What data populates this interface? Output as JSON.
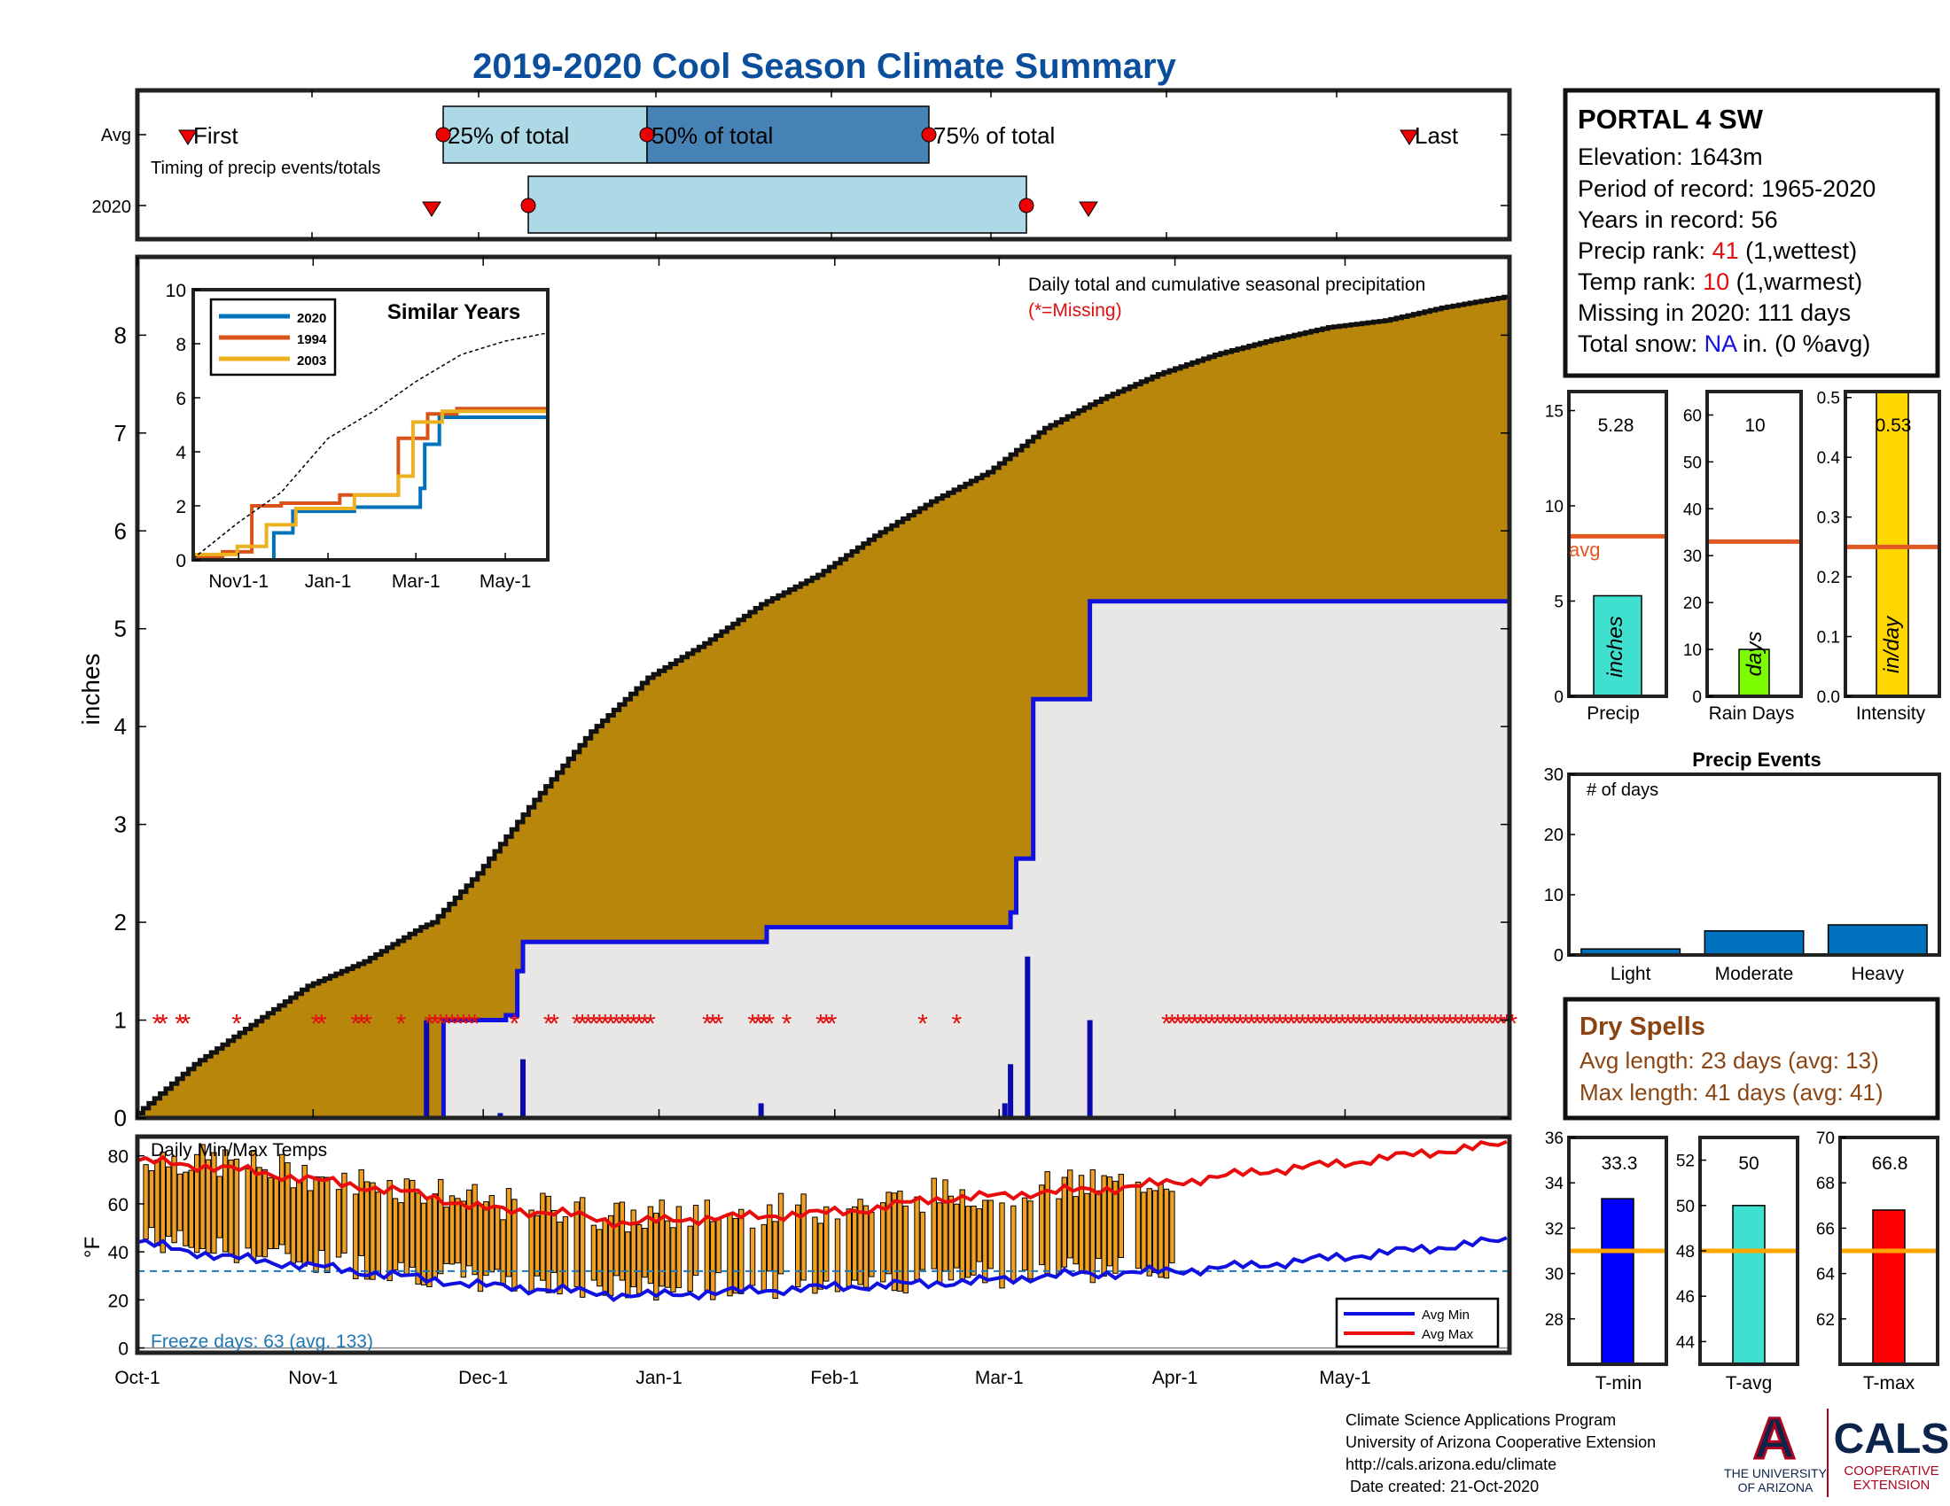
{
  "title": "2019-2020 Cool Season Climate Summary",
  "timing": {
    "row_avg": "Avg",
    "row_year": "2020",
    "caption": "Timing of precip events/totals",
    "first": "First",
    "last": "Last",
    "p25": "25% of total",
    "p50": "50% of total",
    "p75": "75% of total"
  },
  "station": {
    "name": "PORTAL 4 SW",
    "elevation": "Elevation: 1643m",
    "period": "Period of record: 1965-2020",
    "years": "Years in record: 56",
    "precip_rank_label": "Precip rank:",
    "precip_rank_value": "41",
    "precip_rank_note": "(1,wettest)",
    "temp_rank_label": "Temp rank:",
    "temp_rank_value": "10",
    "temp_rank_note": "(1,warmest)",
    "missing": "Missing in 2020: 111 days",
    "snow_label": "Total snow:",
    "snow_value": "NA",
    "snow_note": "in. (0 %avg)"
  },
  "main_plot": {
    "note": "Daily total and cumulative seasonal precipitation",
    "missing_note": "(*=Missing)",
    "ylabel": "inches"
  },
  "inset": {
    "title": "Similar Years",
    "legend": [
      "2020",
      "1994",
      "2003"
    ]
  },
  "mini_bars": {
    "precip": {
      "label": "Precip",
      "value_text": "5.28",
      "unit": "inches",
      "avg_label": "avg"
    },
    "rain_days": {
      "label": "Rain Days",
      "value_text": "10",
      "unit": "days"
    },
    "intensity": {
      "label": "Intensity",
      "value_text": "0.53",
      "unit": "in/day"
    }
  },
  "events": {
    "title": "Precip Events",
    "ylabel": "# of days"
  },
  "dry_spells": {
    "title": "Dry Spells",
    "avg": "Avg length: 23 days (avg: 13)",
    "max": "Max length: 41 days (avg: 41)"
  },
  "temps": {
    "title": "Daily Min/Max Temps",
    "ylabel": "°F",
    "freeze": "Freeze days: 63 (avg. 133)",
    "legend_min": "Avg Min",
    "legend_max": "Avg Max"
  },
  "temp_bars": {
    "tmin": {
      "label": "T-min",
      "value_text": "33.3"
    },
    "tavg": {
      "label": "T-avg",
      "value_text": "50"
    },
    "tmax": {
      "label": "T-max",
      "value_text": "66.8"
    }
  },
  "footer": {
    "line1": "Climate Science Applications Program",
    "line2": "University of Arizona Cooperative Extension",
    "line3": "http://cals.arizona.edu/climate",
    "line4": " Date created: 21-Oct-2020"
  },
  "logos": {
    "ua_letter": "A",
    "ua_line1": "THE UNIVERSITY",
    "ua_line2": "OF ARIZONA",
    "cals": "CALS",
    "cals_line1": "COOPERATIVE",
    "cals_line2": "EXTENSION"
  },
  "colors": {
    "title_blue": "#0b4f9c",
    "cumulative_fill": "#b8860b",
    "obs_fill": "#e8e7e5",
    "obs_line": "#1010e0",
    "rank_red": "#e01010",
    "dry_brown": "#8b4513",
    "light_blue": "#add8e6",
    "steel_blue": "#4682b4",
    "avg_line": "#e25822",
    "temp_avg_line": "#ffa500"
  },
  "chart_data": [
    {
      "id": "cumulative_precip",
      "type": "area",
      "title": "Daily total and cumulative seasonal precipitation",
      "ylabel": "inches",
      "ylim": [
        0,
        8.8
      ],
      "y_ticks": [
        0,
        1,
        2,
        3,
        4,
        5,
        6,
        7,
        8
      ],
      "x_ticks": [
        "Oct-1",
        "Nov-1",
        "Dec-1",
        "Jan-1",
        "Feb-1",
        "Mar-1",
        "Apr-1",
        "May-1"
      ],
      "x_tick_days": [
        0,
        31,
        61,
        92,
        123,
        152,
        183,
        213
      ],
      "xlim_days": [
        0,
        242
      ],
      "series": [
        {
          "name": "Average cumulative",
          "x_days": [
            0,
            10,
            20,
            30,
            40,
            50,
            52,
            60,
            70,
            80,
            90,
            100,
            110,
            120,
            130,
            140,
            150,
            160,
            170,
            180,
            190,
            200,
            210,
            220,
            230,
            242
          ],
          "y": [
            0.05,
            0.55,
            0.95,
            1.35,
            1.6,
            1.95,
            2.0,
            2.5,
            3.25,
            3.95,
            4.5,
            4.85,
            5.25,
            5.55,
            5.95,
            6.3,
            6.6,
            7.05,
            7.35,
            7.6,
            7.8,
            7.95,
            8.08,
            8.15,
            8.28,
            8.4
          ]
        },
        {
          "name": "2020 cumulative",
          "x_days": [
            0,
            51,
            54,
            57,
            60,
            65,
            67,
            68,
            110,
            111,
            153,
            154,
            155,
            156,
            157,
            158,
            167,
            168,
            242
          ],
          "y": [
            0,
            0,
            1.0,
            1.0,
            1.0,
            1.05,
            1.5,
            1.8,
            1.8,
            1.95,
            1.95,
            2.1,
            2.65,
            2.65,
            2.65,
            4.28,
            4.28,
            5.28,
            5.28
          ]
        },
        {
          "name": "Daily precip",
          "x_days": [
            51,
            64,
            68,
            110,
            153,
            154,
            157,
            168
          ],
          "y": [
            1.0,
            0.05,
            0.6,
            0.15,
            0.15,
            0.55,
            1.65,
            1.0
          ]
        }
      ],
      "missing_day_ranges": [
        [
          3,
          4
        ],
        [
          7,
          8
        ],
        [
          17,
          17
        ],
        [
          31,
          32
        ],
        [
          38,
          40
        ],
        [
          46,
          46
        ],
        [
          51,
          59
        ],
        [
          66,
          66
        ],
        [
          72,
          73
        ],
        [
          77,
          90
        ],
        [
          100,
          102
        ],
        [
          108,
          111
        ],
        [
          114,
          114
        ],
        [
          120,
          122
        ],
        [
          138,
          138
        ],
        [
          144,
          144
        ],
        [
          181,
          242
        ]
      ]
    },
    {
      "id": "similar_years",
      "type": "line",
      "title": "Similar Years",
      "ylim": [
        0,
        10
      ],
      "y_ticks": [
        0,
        2,
        4,
        6,
        8,
        10
      ],
      "x_ticks": [
        "Nov1-1",
        "Jan-1",
        "Mar-1",
        "May-1"
      ],
      "series": [
        {
          "name": "2020",
          "x_days": [
            0,
            51,
            55,
            68,
            110,
            155,
            158,
            168,
            242
          ],
          "y": [
            0,
            0,
            1.0,
            1.8,
            1.95,
            2.65,
            4.28,
            5.28,
            5.28
          ]
        },
        {
          "name": "1994",
          "x_days": [
            0,
            20,
            40,
            60,
            100,
            140,
            160,
            180,
            242
          ],
          "y": [
            0.1,
            0.3,
            2.0,
            2.1,
            2.4,
            4.5,
            5.4,
            5.6,
            6.0
          ]
        },
        {
          "name": "2003",
          "x_days": [
            0,
            30,
            50,
            70,
            110,
            140,
            150,
            170,
            242
          ],
          "y": [
            0.2,
            0.5,
            1.3,
            1.9,
            2.4,
            3.1,
            5.1,
            5.5,
            5.8
          ]
        },
        {
          "name": "Average",
          "x_days": [
            0,
            30,
            60,
            92,
            123,
            152,
            183,
            213,
            242
          ],
          "y": [
            0.05,
            1.35,
            2.5,
            4.5,
            5.5,
            6.6,
            7.6,
            8.1,
            8.4
          ]
        }
      ]
    },
    {
      "id": "precip_total",
      "type": "bar",
      "categories": [
        "Precip"
      ],
      "values": [
        5.28
      ],
      "ylim": [
        0,
        16
      ],
      "y_ticks": [
        0,
        5,
        10,
        15
      ],
      "average": 8.4,
      "ylabel": "inches"
    },
    {
      "id": "rain_days",
      "type": "bar",
      "categories": [
        "Rain Days"
      ],
      "values": [
        10
      ],
      "ylim": [
        0,
        65
      ],
      "y_ticks": [
        0,
        10,
        20,
        30,
        40,
        50,
        60
      ],
      "average": 33,
      "ylabel": "days"
    },
    {
      "id": "intensity",
      "type": "bar",
      "categories": [
        "Intensity"
      ],
      "values": [
        0.53
      ],
      "ylim": [
        0,
        0.51
      ],
      "y_ticks": [
        0,
        0.1,
        0.2,
        0.3,
        0.4,
        0.5
      ],
      "average": 0.25,
      "ylabel": "in/day"
    },
    {
      "id": "precip_events",
      "type": "bar",
      "title": "Precip Events",
      "ylabel": "# of days",
      "categories": [
        "Light",
        "Moderate",
        "Heavy"
      ],
      "values": [
        1,
        4,
        5
      ],
      "ylim": [
        0,
        30
      ],
      "y_ticks": [
        0,
        10,
        20,
        30
      ]
    },
    {
      "id": "daily_temps",
      "type": "bar",
      "title": "Daily Min/Max Temps",
      "ylabel": "°F",
      "ylim": [
        -2,
        88
      ],
      "y_ticks": [
        0,
        20,
        40,
        60,
        80
      ],
      "x_ticks": [
        "Oct-1",
        "Nov-1",
        "Dec-1",
        "Jan-1",
        "Feb-1",
        "Mar-1",
        "Apr-1",
        "May-1"
      ],
      "freeze_line": 32,
      "series": [
        {
          "name": "Avg Max",
          "x_days": [
            0,
            15,
            31,
            50,
            61,
            75,
            86,
            92,
            100,
            110,
            120,
            130,
            140,
            150,
            160,
            170,
            183,
            200,
            213,
            230,
            242
          ],
          "y": [
            78,
            75,
            70,
            64,
            58,
            56,
            52,
            53,
            54,
            55,
            56,
            58,
            62,
            63,
            65,
            66,
            69,
            74,
            77,
            82,
            85
          ]
        },
        {
          "name": "Avg Min",
          "x_days": [
            0,
            15,
            31,
            50,
            61,
            75,
            86,
            92,
            100,
            110,
            120,
            130,
            140,
            150,
            160,
            170,
            183,
            200,
            213,
            230,
            242
          ],
          "y": [
            44,
            38,
            34,
            29,
            26,
            24,
            22,
            22,
            23,
            24,
            25,
            26,
            27,
            28,
            30,
            31,
            32,
            35,
            38,
            42,
            45
          ]
        }
      ]
    },
    {
      "id": "temp_tmin",
      "type": "bar",
      "categories": [
        "T-min"
      ],
      "values": [
        33.3
      ],
      "ylim": [
        26,
        36
      ],
      "y_ticks": [
        28,
        30,
        32,
        34,
        36
      ],
      "average": 31
    },
    {
      "id": "temp_tavg",
      "type": "bar",
      "categories": [
        "T-avg"
      ],
      "values": [
        50
      ],
      "ylim": [
        43,
        53
      ],
      "y_ticks": [
        44,
        46,
        48,
        50,
        52
      ],
      "average": 48
    },
    {
      "id": "temp_tmax",
      "type": "bar",
      "categories": [
        "T-max"
      ],
      "values": [
        66.8
      ],
      "ylim": [
        60,
        70
      ],
      "y_ticks": [
        62,
        64,
        66,
        68,
        70
      ],
      "average": 65
    }
  ]
}
